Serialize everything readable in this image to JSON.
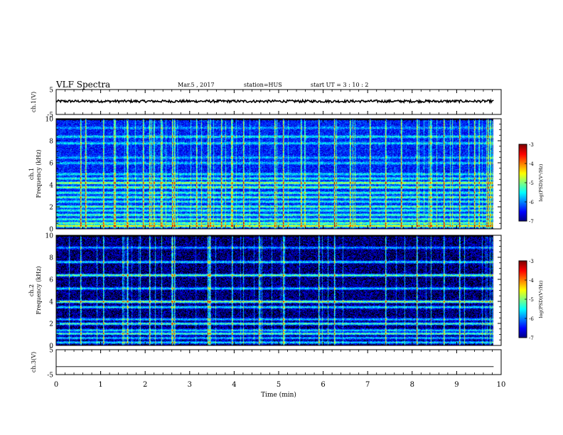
{
  "header": {
    "title": "VLF Spectra",
    "date": "Mar.5 , 2017",
    "station": "station=HUS",
    "start_time": "start UT = 3 : 10 : 2"
  },
  "chart_data": [
    {
      "type": "line",
      "name": "ch1-waveform",
      "ylabel": "ch.1(V)",
      "ylim": [
        -5,
        5
      ],
      "yticks": [
        "5",
        "-5"
      ],
      "xlim": [
        0,
        10
      ],
      "trace": {
        "level": 0.3,
        "noise": 0.5,
        "color": "#000000"
      }
    },
    {
      "type": "heatmap",
      "name": "ch1-spectrogram",
      "ylabel": "ch.1\nFrequency (kHz)",
      "ylabel_lines": [
        "ch.1",
        "Frequency (kHz)"
      ],
      "xlim": [
        0,
        10
      ],
      "data_xmax": 9.83,
      "ylim": [
        0,
        10
      ],
      "yticks": [
        "0",
        "2",
        "4",
        "6",
        "8",
        "10"
      ],
      "colorbar": {
        "label": "log(PSD)(V²/Hz)",
        "range": [
          -7,
          -3
        ],
        "ticks": [
          "-3",
          "-4",
          "-5",
          "-6",
          "-7"
        ]
      },
      "background_level": -6.4,
      "bands_khz": [
        {
          "f": 0.3,
          "level": -4.2
        },
        {
          "f": 0.55,
          "level": -4.8
        },
        {
          "f": 0.9,
          "level": -5.2
        },
        {
          "f": 1.3,
          "level": -5.1
        },
        {
          "f": 1.7,
          "level": -5.3
        },
        {
          "f": 2.05,
          "level": -5.0
        },
        {
          "f": 2.5,
          "level": -5.3
        },
        {
          "f": 2.9,
          "level": -5.1
        },
        {
          "f": 3.3,
          "level": -5.2
        },
        {
          "f": 3.8,
          "level": -4.9
        },
        {
          "f": 4.2,
          "level": -4.6
        },
        {
          "f": 4.6,
          "level": -5.3
        },
        {
          "f": 5.0,
          "level": -5.4
        },
        {
          "f": 6.0,
          "level": -5.6
        },
        {
          "f": 6.5,
          "level": -5.7
        },
        {
          "f": 7.8,
          "level": -5.5
        },
        {
          "f": 8.4,
          "level": -5.4
        },
        {
          "f": 9.2,
          "level": -5.8
        }
      ],
      "sferics_min": [
        0.55,
        0.65,
        1.05,
        1.3,
        1.6,
        1.95,
        2.1,
        2.35,
        2.6,
        2.65,
        3.15,
        3.4,
        3.45,
        3.7,
        3.95,
        4.2,
        4.55,
        4.9,
        5.1,
        5.5,
        5.9,
        6.25,
        6.6,
        7.05,
        7.4,
        7.75,
        8.1,
        8.4,
        8.7,
        9.05,
        9.4,
        9.7
      ]
    },
    {
      "type": "heatmap",
      "name": "ch2-spectrogram",
      "ylabel": "ch.2\nFrequency (kHz)",
      "ylabel_lines": [
        "ch.2",
        "Frequency (kHz)"
      ],
      "xlim": [
        0,
        10
      ],
      "data_xmax": 9.83,
      "ylim": [
        0,
        10
      ],
      "yticks": [
        "0",
        "2",
        "4",
        "6",
        "8",
        "10"
      ],
      "colorbar": {
        "label": "log(PSD)(V²/Hz)",
        "range": [
          -7,
          -3
        ],
        "ticks": [
          "-3",
          "-4",
          "-5",
          "-6",
          "-7"
        ]
      },
      "background_level": -6.9,
      "bands_khz": [
        {
          "f": 0.3,
          "level": -5.4
        },
        {
          "f": 0.7,
          "level": -5.6
        },
        {
          "f": 1.1,
          "level": -5.0
        },
        {
          "f": 1.4,
          "level": -5.4
        },
        {
          "f": 2.0,
          "level": -5.1
        },
        {
          "f": 2.4,
          "level": -5.6
        },
        {
          "f": 3.5,
          "level": -5.4
        },
        {
          "f": 4.0,
          "level": -4.7
        },
        {
          "f": 5.2,
          "level": -5.5
        },
        {
          "f": 6.4,
          "level": -4.9
        },
        {
          "f": 7.6,
          "level": -5.4
        },
        {
          "f": 8.9,
          "level": -5.8
        }
      ],
      "sferics_min": [
        0.55,
        1.05,
        1.6,
        2.1,
        2.6,
        2.65,
        3.4,
        3.45,
        3.95,
        4.55,
        5.1,
        5.9,
        6.25,
        7.4,
        8.1,
        8.7,
        9.05
      ]
    },
    {
      "type": "line",
      "name": "ch3-waveform",
      "ylabel": "ch.3(V)",
      "ylim": [
        -5,
        5
      ],
      "yticks": [
        "5",
        "-5"
      ],
      "xlim": [
        0,
        10
      ],
      "trace": {
        "level": -1.8,
        "noise": 0.0,
        "color": "#000000"
      }
    }
  ],
  "xaxis": {
    "label": "Time (min)",
    "ticks": [
      "0",
      "1",
      "2",
      "3",
      "4",
      "5",
      "6",
      "7",
      "8",
      "9",
      "10"
    ]
  }
}
